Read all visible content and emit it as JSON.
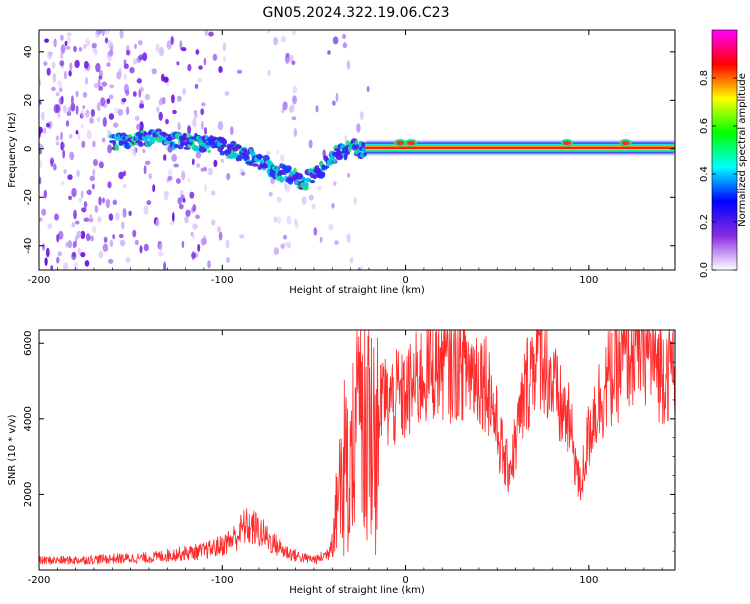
{
  "title": "GN05.2024.322.19.06.C23",
  "chart_data": [
    {
      "type": "heatmap",
      "name": "spectrogram",
      "xlabel": "Height of straight line (km)",
      "ylabel": "Frequency (Hz)",
      "xlim": [
        -200,
        147
      ],
      "ylim": [
        -50,
        49
      ],
      "xticks": [
        -200,
        -100,
        0,
        100
      ],
      "yticks": [
        -40,
        -20,
        0,
        20,
        40
      ],
      "colorbar": {
        "label": "Normalized spectral amplitude",
        "range": [
          0,
          1
        ],
        "ticks": [
          0,
          0.2,
          0.4,
          0.6,
          0.8
        ],
        "tick_labels": [
          "0.0",
          "0.2",
          "0.4",
          "0.6",
          "0.8"
        ],
        "colors": [
          "#ffffff",
          "#8a2be2",
          "#0000ff",
          "#00ffff",
          "#00ff00",
          "#ffff00",
          "#ff0000",
          "#ff00ff"
        ]
      },
      "ridge": {
        "x": [
          -160,
          -140,
          -130,
          -120,
          -110,
          -100,
          -90,
          -80,
          -70,
          -60,
          -55,
          -50,
          -45,
          -40,
          -35,
          -30,
          -25,
          -20,
          -10,
          -5,
          0,
          5,
          10,
          20,
          50,
          80,
          100,
          120,
          147
        ],
        "freq": [
          3,
          5,
          4,
          3,
          2,
          1,
          -2,
          -5,
          -9,
          -12,
          -14,
          -10,
          -8,
          -4,
          -1,
          0,
          0,
          0,
          0,
          1,
          2,
          2,
          1,
          0,
          0,
          0,
          0,
          0,
          1
        ]
      }
    },
    {
      "type": "line",
      "name": "snr",
      "xlabel": "Height of straight line (km)",
      "ylabel": "SNR (10 * v/v)",
      "xlim": [
        -200,
        147
      ],
      "ylim": [
        0,
        6350
      ],
      "xticks": [
        -200,
        -100,
        0,
        100
      ],
      "yticks": [
        2000,
        4000,
        6000
      ],
      "series": [
        {
          "name": "SNR",
          "color": "#ff2a2a",
          "x": [
            -200,
            -180,
            -160,
            -140,
            -125,
            -110,
            -100,
            -92,
            -88,
            -82,
            -78,
            -72,
            -66,
            -60,
            -54,
            -48,
            -42,
            -40,
            -38,
            -36,
            -34,
            -32,
            -30,
            -28,
            -26,
            -24,
            -22,
            -20,
            -18,
            -16,
            -14,
            -12,
            -10,
            -8,
            -6,
            -4,
            -2,
            0,
            5,
            10,
            15,
            20,
            25,
            30,
            35,
            40,
            45,
            48,
            52,
            55,
            58,
            62,
            66,
            70,
            72,
            76,
            80,
            84,
            88,
            92,
            95,
            98,
            102,
            106,
            110,
            115,
            120,
            125,
            130,
            135,
            140,
            147
          ],
          "y": [
            250,
            260,
            300,
            320,
            420,
            500,
            650,
            900,
            1150,
            1100,
            950,
            700,
            500,
            380,
            300,
            280,
            450,
            900,
            1500,
            2500,
            3300,
            2600,
            3000,
            3600,
            4200,
            4700,
            3900,
            4400,
            4000,
            4600,
            4200,
            4750,
            4300,
            4550,
            4400,
            4700,
            4500,
            4600,
            4900,
            5200,
            5400,
            5500,
            5350,
            5500,
            5300,
            5200,
            5000,
            4200,
            3300,
            2700,
            2900,
            3900,
            4900,
            5600,
            6000,
            5600,
            4900,
            4300,
            4100,
            3200,
            2100,
            3000,
            4100,
            4500,
            5000,
            5300,
            5700,
            5900,
            6100,
            5600,
            5300,
            5500
          ]
        }
      ]
    }
  ]
}
